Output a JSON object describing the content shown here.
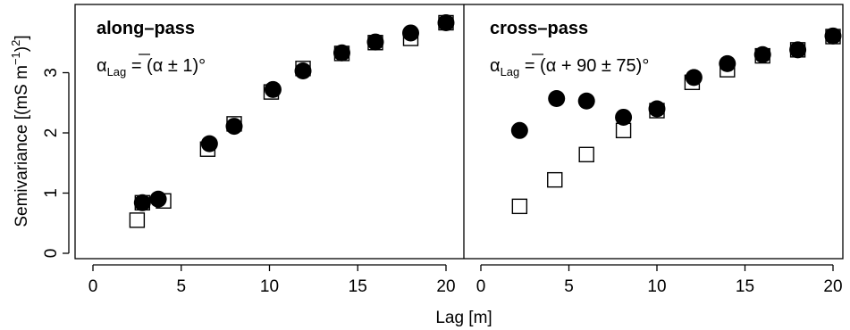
{
  "chart_data": [
    {
      "type": "scatter",
      "title": "along–pass",
      "annotation": "αLag = (α ± 1)°",
      "xlabel": "Lag [m]",
      "ylabel": "Semivariance [(mS m−1)2]",
      "xlim": [
        0,
        20
      ],
      "ylim": [
        0,
        3.8
      ],
      "xticks": [
        "0",
        "5",
        "10",
        "15",
        "20"
      ],
      "yticks": [
        "0",
        "1",
        "2",
        "3"
      ],
      "grid": false,
      "series": [
        {
          "marker": "open-square",
          "points": [
            [
              2.5,
              0.55
            ],
            [
              2.8,
              0.84
            ],
            [
              4.0,
              0.87
            ],
            [
              6.5,
              1.73
            ],
            [
              8.0,
              2.15
            ],
            [
              10.1,
              2.68
            ],
            [
              11.9,
              3.07
            ],
            [
              14.1,
              3.32
            ],
            [
              16.0,
              3.5
            ],
            [
              18.0,
              3.57
            ],
            [
              20.0,
              3.83
            ]
          ]
        },
        {
          "marker": "filled-circle",
          "points": [
            [
              2.8,
              0.84
            ],
            [
              3.7,
              0.9
            ],
            [
              6.6,
              1.82
            ],
            [
              8.0,
              2.11
            ],
            [
              10.2,
              2.72
            ],
            [
              11.9,
              3.03
            ],
            [
              14.1,
              3.33
            ],
            [
              16.0,
              3.51
            ],
            [
              18.0,
              3.66
            ],
            [
              20.0,
              3.83
            ]
          ]
        }
      ]
    },
    {
      "type": "scatter",
      "title": "cross–pass",
      "annotation": "αLag = (α + 90 ± 75)°",
      "xlabel": "Lag [m]",
      "xlim": [
        0,
        20
      ],
      "ylim": [
        0,
        3.8
      ],
      "xticks": [
        "0",
        "5",
        "10",
        "15",
        "20"
      ],
      "grid": false,
      "series": [
        {
          "marker": "open-square",
          "points": [
            [
              2.2,
              0.78
            ],
            [
              4.2,
              1.22
            ],
            [
              6.0,
              1.64
            ],
            [
              8.1,
              2.04
            ],
            [
              10.0,
              2.37
            ],
            [
              12.0,
              2.84
            ],
            [
              14.0,
              3.05
            ],
            [
              16.0,
              3.28
            ],
            [
              18.0,
              3.38
            ],
            [
              20.0,
              3.6
            ]
          ]
        },
        {
          "marker": "filled-circle",
          "points": [
            [
              2.2,
              2.04
            ],
            [
              4.3,
              2.57
            ],
            [
              6.0,
              2.53
            ],
            [
              8.1,
              2.26
            ],
            [
              10.0,
              2.4
            ],
            [
              12.1,
              2.92
            ],
            [
              14.0,
              3.15
            ],
            [
              16.0,
              3.3
            ],
            [
              18.0,
              3.38
            ],
            [
              20.0,
              3.61
            ]
          ]
        }
      ]
    }
  ]
}
